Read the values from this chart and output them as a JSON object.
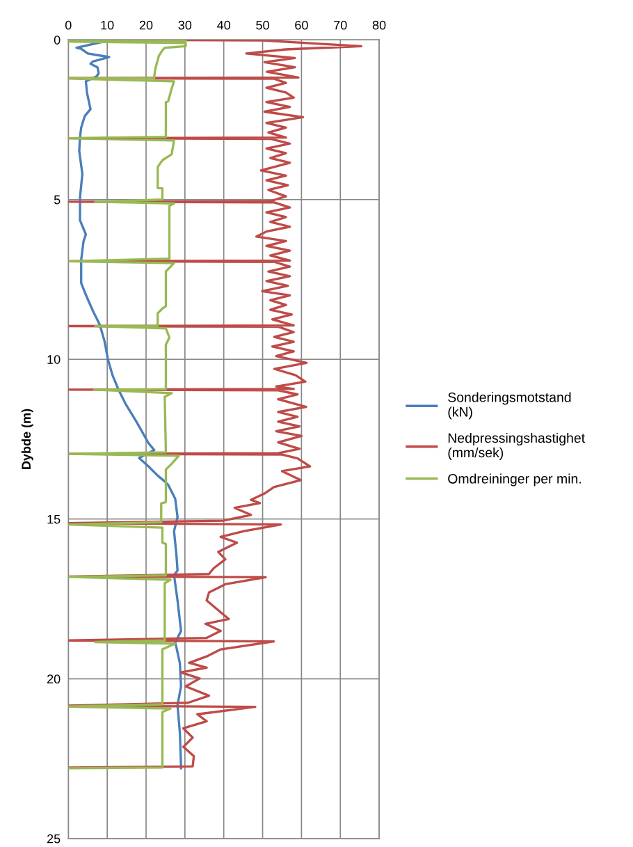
{
  "chart_data": {
    "type": "line",
    "orientation": "horizontal",
    "ylabel": "Dybde (m)",
    "xlim": [
      0,
      80
    ],
    "xticks": [
      0,
      10,
      20,
      30,
      40,
      50,
      60,
      70,
      80
    ],
    "ylim": [
      25,
      0
    ],
    "yticks": [
      0,
      5,
      10,
      15,
      20,
      25
    ],
    "grid": true,
    "legend": "right",
    "marker": "none",
    "line_style": "solid",
    "series": [
      {
        "name": "Sonderingsmotstand (kN)",
        "color": "#4a7ebb",
        "x": [
          0,
          0.03,
          0.25,
          0.28,
          0.43,
          0.54,
          0.68,
          0.75,
          0.86,
          1.05,
          1.15,
          1.3,
          1.66,
          2.17,
          2.39,
          2.75,
          3.04,
          3.48,
          4.2,
          4.93,
          5.65,
          6.09,
          6.31,
          6.89,
          7.61,
          7.98,
          8.48,
          8.92,
          9.43,
          10.01,
          10.51,
          10.95,
          11.39,
          11.97,
          12.62,
          12.84,
          13.09,
          13.35,
          13.64,
          13.82,
          13.93,
          14.36,
          14.94,
          15.38,
          16.1,
          16.61,
          16.75,
          17.55,
          18.5,
          18.87,
          19.01,
          19.51,
          20.24,
          20.82,
          21.69,
          22.71,
          22.8
        ],
        "values": [
          0,
          10,
          2.1,
          3.3,
          5,
          10.5,
          6.3,
          5.7,
          7.5,
          7.8,
          7.2,
          4.5,
          4.8,
          5.7,
          4.2,
          3.3,
          3,
          2.8,
          3.6,
          3,
          3,
          4.5,
          3.9,
          3.3,
          3.3,
          4.5,
          6.3,
          8.1,
          9.3,
          10.2,
          11.4,
          12.9,
          14.7,
          17.6,
          20.6,
          22.1,
          18.2,
          20.6,
          23,
          24.8,
          25.7,
          27.5,
          28.1,
          27.2,
          27.8,
          28.1,
          27.2,
          28.1,
          29,
          27.5,
          27.8,
          28.7,
          29,
          28.1,
          28.7,
          29,
          29
        ]
      },
      {
        "name": "Nedpressingshastighet (mm/sek)",
        "color": "#be4b48",
        "x": [
          0,
          0.02,
          0.2,
          0.3,
          0.43,
          0.57,
          0.7,
          0.86,
          1.0,
          1.18,
          1.2,
          1.22,
          1.35,
          1.5,
          1.65,
          1.81,
          1.95,
          2.1,
          2.25,
          2.42,
          2.6,
          2.75,
          2.9,
          3.06,
          3.08,
          3.1,
          3.25,
          3.4,
          3.55,
          3.7,
          3.85,
          4.09,
          4.25,
          4.4,
          4.55,
          4.7,
          4.9,
          5.05,
          5.07,
          5.09,
          5.25,
          5.4,
          5.55,
          5.7,
          5.85,
          6.0,
          6.16,
          6.3,
          6.45,
          6.6,
          6.75,
          6.91,
          6.93,
          6.95,
          7.1,
          7.25,
          7.4,
          7.55,
          7.7,
          7.87,
          8.0,
          8.15,
          8.3,
          8.45,
          8.6,
          8.75,
          8.94,
          8.96,
          8.98,
          9.15,
          9.3,
          9.45,
          9.6,
          9.75,
          9.9,
          10.11,
          10.3,
          10.5,
          10.7,
          10.85,
          10.93,
          10.95,
          10.97,
          11.1,
          11.25,
          11.49,
          11.65,
          11.8,
          11.95,
          12.1,
          12.25,
          12.4,
          12.6,
          12.8,
          12.94,
          12.96,
          12.98,
          13.1,
          13.35,
          13.5,
          13.78,
          14.0,
          14.2,
          14.4,
          14.5,
          14.65,
          14.87,
          15.05,
          15.13,
          15.17,
          15.38,
          15.56,
          15.74,
          16.03,
          16.26,
          16.54,
          16.72,
          16.8,
          16.82,
          17.04,
          17.3,
          17.55,
          17.92,
          18.13,
          18.28,
          18.5,
          18.72,
          18.8,
          18.83,
          19.08,
          19.3,
          19.5,
          19.65,
          19.8,
          19.99,
          20.24,
          20.53,
          20.75,
          20.84,
          20.88,
          21.11,
          21.33,
          21.55,
          21.84,
          22.13,
          22.42,
          22.74,
          22.78
        ],
        "values": [
          7.5,
          50,
          75.4,
          55.9,
          45.8,
          58.3,
          50.5,
          58.3,
          51.1,
          59.2,
          0,
          53,
          56,
          51,
          56,
          58,
          51,
          57,
          50.5,
          60.4,
          51,
          56,
          51.5,
          56,
          0,
          52,
          57,
          51,
          56,
          52,
          57,
          49.6,
          56,
          51,
          56.5,
          51.5,
          56,
          52,
          0,
          53,
          57,
          51,
          56,
          52,
          57,
          51,
          48.4,
          56,
          51,
          57,
          52,
          57,
          0,
          53,
          57,
          51.5,
          57,
          51,
          56.5,
          49.9,
          57,
          52,
          56,
          52,
          57.5,
          52.5,
          58,
          0,
          54,
          58,
          53,
          58,
          52.5,
          58,
          53.5,
          61.3,
          53,
          58.5,
          61,
          53.5,
          58,
          0,
          54,
          59,
          54,
          61.2,
          54,
          59,
          54,
          59.5,
          53.5,
          60,
          54,
          59.5,
          54,
          0,
          55,
          59,
          62.2,
          55,
          59.8,
          52.9,
          50.5,
          47,
          49.3,
          42.8,
          47,
          39.8,
          0,
          54.7,
          45.2,
          39.2,
          43.4,
          38.6,
          40.4,
          37.4,
          36.2,
          0,
          50.8,
          40.4,
          36.2,
          35.6,
          39.2,
          41.3,
          35.3,
          39.2,
          35.6,
          0,
          52.9,
          39.2,
          35.6,
          31.1,
          35.6,
          29,
          33.8,
          30.2,
          36.2,
          30.8,
          0,
          48.1,
          33.2,
          35.6,
          29.6,
          32,
          29.6,
          32.3,
          32,
          0
        ]
      },
      {
        "name": "Omdreininger per min.",
        "color": "#98b954",
        "x": [
          0,
          0.03,
          0.06,
          0.1,
          0.2,
          0.25,
          0.33,
          0.5,
          0.9,
          1.15,
          1.2,
          1.21,
          1.3,
          1.52,
          1.92,
          1.95,
          3.04,
          3.08,
          3.15,
          3.58,
          3.77,
          3.98,
          4.64,
          4.65,
          5.0,
          5.07,
          5.12,
          5.2,
          6.85,
          6.93,
          6.99,
          7.25,
          8.34,
          8.41,
          8.56,
          8.95,
          8.96,
          9.03,
          9.32,
          9.54,
          10.94,
          10.95,
          11.06,
          11.17,
          12.91,
          12.96,
          13.02,
          13.27,
          13.45,
          14.47,
          14.51,
          15.1,
          15.17,
          15.27,
          15.34,
          15.74,
          15.78,
          16.76,
          16.81,
          16.9,
          17.01,
          18.8,
          18.85,
          18.9,
          19.08,
          20.8,
          20.87,
          20.93,
          21.04,
          22.78,
          22.8
        ],
        "values": [
          0,
          30.2,
          0,
          30.2,
          30.2,
          24.8,
          24.2,
          23.3,
          22.4,
          22.1,
          22.1,
          0,
          27.2,
          26.6,
          25.7,
          25.1,
          25.1,
          0,
          27.2,
          26.6,
          24.2,
          23,
          23,
          24.2,
          24.2,
          6.9,
          27.2,
          26,
          26,
          0,
          27.2,
          25.1,
          25.1,
          24.2,
          23,
          23,
          6.9,
          25.1,
          26,
          25.1,
          25.1,
          6.6,
          26.6,
          24.8,
          25.1,
          0,
          28.4,
          26.6,
          25.1,
          25.1,
          23.9,
          23.9,
          0,
          24.2,
          24.2,
          24.2,
          25.1,
          25.1,
          0,
          26.3,
          24.8,
          24.8,
          6.9,
          27.5,
          24.2,
          24.2,
          0,
          26.3,
          24.2,
          24.2,
          0
        ]
      }
    ]
  }
}
